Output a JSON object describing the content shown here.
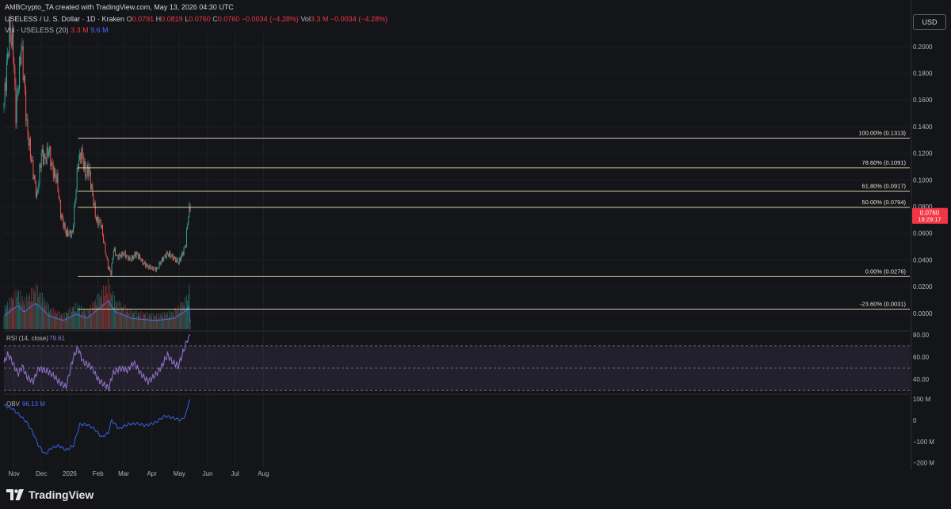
{
  "header": {
    "credit": "AMBCrypto_TA created with TradingView.com, May 13, 2026 04:30 UTC",
    "symbol": "USELESS / U. S. Dollar · 1D · Kraken",
    "ohlc": {
      "o_label": "O",
      "o": "0.0791",
      "h_label": "H",
      "h": "0.0819",
      "l_label": "L",
      "l": "0.0760",
      "c_label": "C",
      "c": "0.0760",
      "change": "−0.0034 (−4.28%)",
      "vol_label": "Vol",
      "vol": "3.3 M",
      "vol_change": "−0.0034 (−4.28%)"
    },
    "volume_legend": {
      "label": "Vol · USELESS (20)",
      "v1": "3.3 M",
      "v2": "9.6 M"
    },
    "currency_button": "USD"
  },
  "footer": {
    "brand": "TradingView"
  },
  "colors": {
    "bg": "#141518",
    "up": "#26a69a",
    "down": "#ef5350",
    "fib": "#e8e2b5",
    "rsi": "#9575cd",
    "obv": "#3962e8",
    "vol_ma": "#4a6fd9",
    "price_tag": "#f23645",
    "grid": "#1e2024",
    "text": "#b2b5be"
  },
  "chart_data": [
    {
      "type": "candlestick",
      "title": "USELESS / U. S. Dollar · 1D · Kraken",
      "x_axis": {
        "tick_labels": [
          "Nov",
          "Dec",
          "2026",
          "Feb",
          "Mar",
          "Apr",
          "May",
          "Jun",
          "Jul",
          "Aug"
        ],
        "tick_dates": [
          "2025-11-01",
          "2025-12-01",
          "2026-01-01",
          "2026-02-01",
          "2026-03-01",
          "2026-04-01",
          "2026-05-01",
          "2026-06-01",
          "2026-07-01",
          "2026-08-01"
        ]
      },
      "y_axis": {
        "range": [
          -0.012,
          0.21
        ],
        "tick_values": [
          0.2,
          0.18,
          0.16,
          0.14,
          0.12,
          0.1,
          0.08,
          0.06,
          0.04,
          0.02,
          0
        ],
        "tick_labels": [
          "0.2000",
          "0.1800",
          "0.1600",
          "0.1400",
          "0.1200",
          "0.1000",
          "0.0800",
          "0.0600",
          "0.0400",
          "0.0200",
          "0.0000"
        ]
      },
      "price_anchors": [
        [
          "2025-10-21",
          0.158
        ],
        [
          "2025-10-27",
          0.21
        ],
        [
          "2025-10-31",
          0.2
        ],
        [
          "2025-11-03",
          0.15
        ],
        [
          "2025-11-06",
          0.175
        ],
        [
          "2025-11-09",
          0.2
        ],
        [
          "2025-11-12",
          0.175
        ],
        [
          "2025-11-15",
          0.14
        ],
        [
          "2025-11-20",
          0.115
        ],
        [
          "2025-11-26",
          0.087
        ],
        [
          "2025-12-01",
          0.12
        ],
        [
          "2025-12-05",
          0.115
        ],
        [
          "2025-12-09",
          0.123
        ],
        [
          "2025-12-13",
          0.108
        ],
        [
          "2025-12-18",
          0.1
        ],
        [
          "2025-12-22",
          0.075
        ],
        [
          "2025-12-28",
          0.06
        ],
        [
          "2026-01-04",
          0.06
        ],
        [
          "2026-01-10",
          0.113
        ],
        [
          "2026-01-14",
          0.12
        ],
        [
          "2026-01-18",
          0.105
        ],
        [
          "2026-01-22",
          0.108
        ],
        [
          "2026-01-26",
          0.088
        ],
        [
          "2026-01-30",
          0.07
        ],
        [
          "2026-02-04",
          0.068
        ],
        [
          "2026-02-08",
          0.05
        ],
        [
          "2026-02-12",
          0.035
        ],
        [
          "2026-02-15",
          0.03
        ],
        [
          "2026-02-18",
          0.048
        ],
        [
          "2026-02-22",
          0.042
        ],
        [
          "2026-03-01",
          0.045
        ],
        [
          "2026-03-08",
          0.04
        ],
        [
          "2026-03-15",
          0.045
        ],
        [
          "2026-03-22",
          0.038
        ],
        [
          "2026-03-30",
          0.034
        ],
        [
          "2026-04-06",
          0.033
        ],
        [
          "2026-04-12",
          0.04
        ],
        [
          "2026-04-18",
          0.045
        ],
        [
          "2026-04-24",
          0.042
        ],
        [
          "2026-04-30",
          0.038
        ],
        [
          "2026-05-05",
          0.046
        ],
        [
          "2026-05-08",
          0.052
        ],
        [
          "2026-05-10",
          0.068
        ],
        [
          "2026-05-12",
          0.0794
        ],
        [
          "2026-05-13",
          0.076
        ]
      ],
      "last_candle": {
        "date": "2026-05-13",
        "open": 0.0791,
        "high": 0.0819,
        "low": 0.076,
        "close": 0.076
      },
      "last_price": {
        "label": "0.0760",
        "countdown": "19:29:17"
      },
      "fib_levels": [
        {
          "label": "100.00% (0.1313)",
          "value": 0.1313
        },
        {
          "label": "78.60% (0.1091)",
          "value": 0.1091
        },
        {
          "label": "61.80% (0.0917)",
          "value": 0.0917
        },
        {
          "label": "50.00% (0.0794)",
          "value": 0.0794
        },
        {
          "label": "0.00% (0.0276)",
          "value": 0.0276
        },
        {
          "label": "-23.60% (0.0031)",
          "value": 0.0031
        }
      ],
      "fib_start_date": "2026-01-10",
      "volume": {
        "anchors": [
          [
            "2025-10-21",
            6
          ],
          [
            "2025-11-05",
            11
          ],
          [
            "2025-11-12",
            8
          ],
          [
            "2025-11-25",
            12
          ],
          [
            "2025-12-10",
            6
          ],
          [
            "2025-12-25",
            4
          ],
          [
            "2026-01-08",
            7
          ],
          [
            "2026-01-20",
            5
          ],
          [
            "2026-02-12",
            13
          ],
          [
            "2026-02-20",
            8
          ],
          [
            "2026-03-10",
            5
          ],
          [
            "2026-04-05",
            4
          ],
          [
            "2026-04-25",
            5
          ],
          [
            "2026-05-10",
            9
          ],
          [
            "2026-05-12",
            12
          ],
          [
            "2026-05-13",
            3.3
          ]
        ],
        "unit": "M"
      }
    },
    {
      "type": "line",
      "title": "RSI (14, close)",
      "current_value": "79.61",
      "y_axis": {
        "range": [
          28,
          82
        ],
        "tick_values": [
          80,
          60,
          40
        ],
        "tick_labels": [
          "80.00",
          "60.00",
          "40.00"
        ]
      },
      "band": {
        "upper": 70,
        "middle": 50,
        "lower": 30
      },
      "anchors": [
        [
          "2025-10-21",
          55
        ],
        [
          "2025-10-25",
          62
        ],
        [
          "2025-10-29",
          58
        ],
        [
          "2025-11-02",
          50
        ],
        [
          "2025-11-06",
          45
        ],
        [
          "2025-11-10",
          52
        ],
        [
          "2025-11-15",
          42
        ],
        [
          "2025-11-22",
          38
        ],
        [
          "2025-11-28",
          50
        ],
        [
          "2025-12-05",
          48
        ],
        [
          "2025-12-12",
          45
        ],
        [
          "2025-12-20",
          38
        ],
        [
          "2025-12-28",
          33
        ],
        [
          "2026-01-05",
          60
        ],
        [
          "2026-01-10",
          68
        ],
        [
          "2026-01-16",
          55
        ],
        [
          "2026-01-24",
          52
        ],
        [
          "2026-02-01",
          40
        ],
        [
          "2026-02-08",
          35
        ],
        [
          "2026-02-13",
          32
        ],
        [
          "2026-02-17",
          45
        ],
        [
          "2026-02-25",
          50
        ],
        [
          "2026-03-05",
          48
        ],
        [
          "2026-03-12",
          55
        ],
        [
          "2026-03-20",
          45
        ],
        [
          "2026-03-28",
          38
        ],
        [
          "2026-04-05",
          44
        ],
        [
          "2026-04-12",
          52
        ],
        [
          "2026-04-18",
          62
        ],
        [
          "2026-04-24",
          55
        ],
        [
          "2026-04-30",
          52
        ],
        [
          "2026-05-05",
          64
        ],
        [
          "2026-05-10",
          76
        ],
        [
          "2026-05-12",
          80
        ],
        [
          "2026-05-13",
          79.61
        ]
      ]
    },
    {
      "type": "line",
      "title": "OBV",
      "current_value": "96.13 M",
      "y_axis": {
        "range": [
          -220,
          115
        ],
        "tick_values": [
          100,
          0,
          -100,
          -200
        ],
        "tick_labels": [
          "100 M",
          "0",
          "−100 M",
          "−200 M"
        ]
      },
      "anchors": [
        [
          "2025-10-21",
          70
        ],
        [
          "2025-10-30",
          55
        ],
        [
          "2025-11-08",
          20
        ],
        [
          "2025-11-15",
          -10
        ],
        [
          "2025-11-22",
          -60
        ],
        [
          "2025-11-28",
          -120
        ],
        [
          "2025-12-05",
          -160
        ],
        [
          "2025-12-12",
          -130
        ],
        [
          "2025-12-20",
          -120
        ],
        [
          "2025-12-28",
          -140
        ],
        [
          "2026-01-05",
          -120
        ],
        [
          "2026-01-12",
          -20
        ],
        [
          "2026-01-20",
          -20
        ],
        [
          "2026-01-28",
          -40
        ],
        [
          "2026-02-05",
          -80
        ],
        [
          "2026-02-12",
          -60
        ],
        [
          "2026-02-16",
          0
        ],
        [
          "2026-02-24",
          -40
        ],
        [
          "2026-03-05",
          -20
        ],
        [
          "2026-03-15",
          -15
        ],
        [
          "2026-03-25",
          -25
        ],
        [
          "2026-04-05",
          -10
        ],
        [
          "2026-04-15",
          20
        ],
        [
          "2026-04-25",
          10
        ],
        [
          "2026-05-03",
          0
        ],
        [
          "2026-05-08",
          25
        ],
        [
          "2026-05-12",
          96
        ],
        [
          "2026-05-13",
          96.13
        ]
      ]
    }
  ]
}
